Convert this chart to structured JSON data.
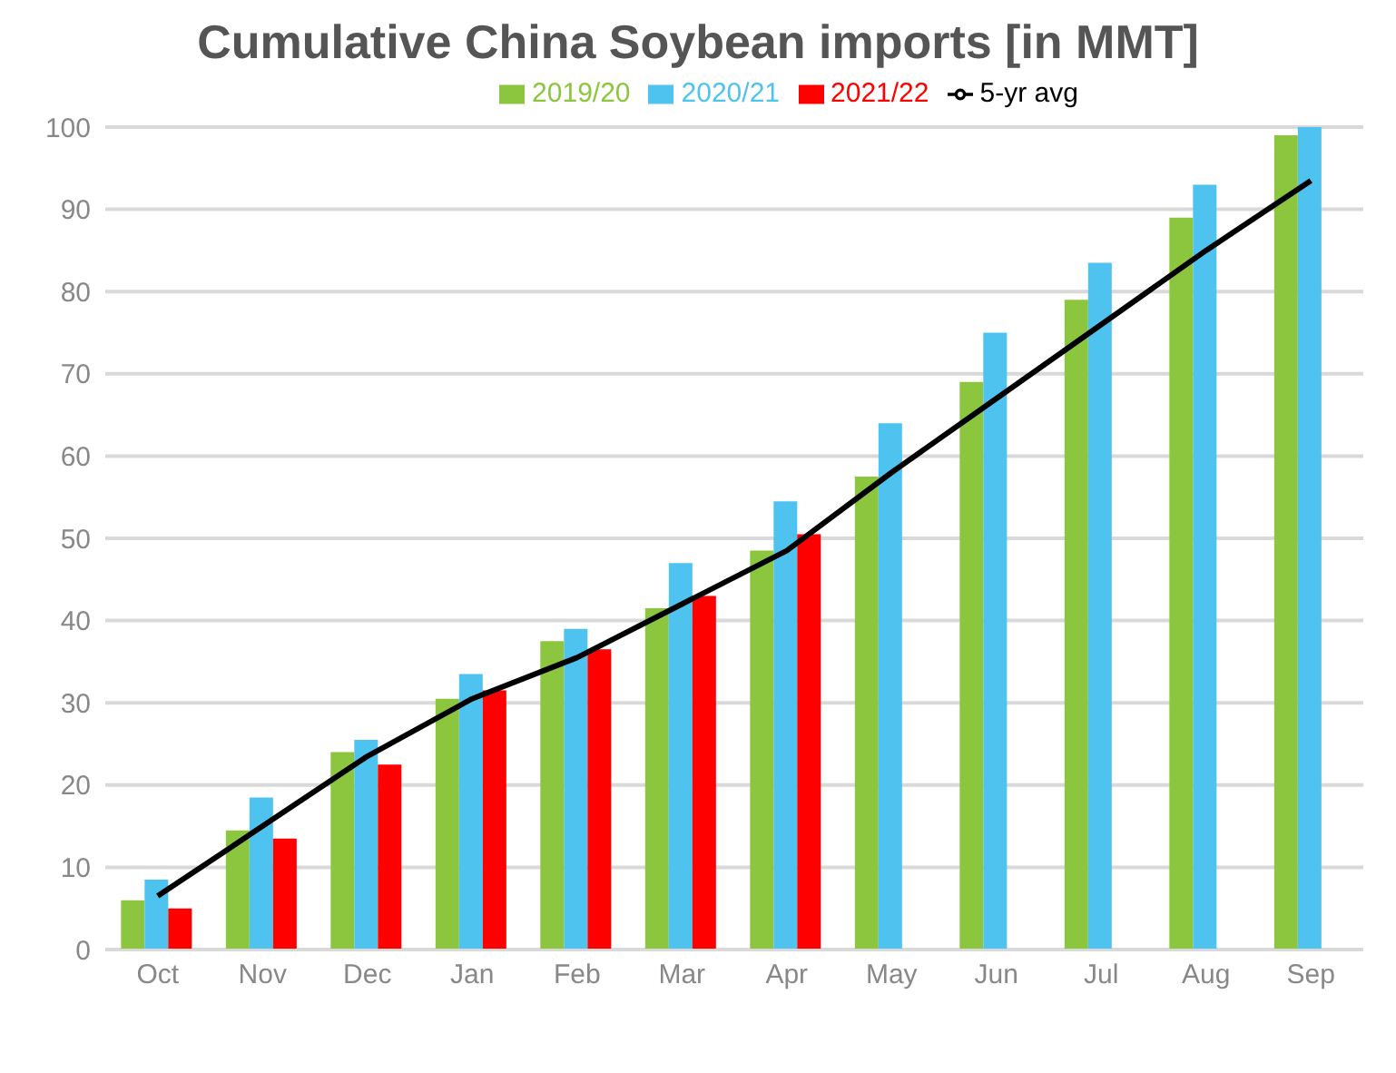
{
  "chart_data": {
    "type": "bar",
    "title": "Cumulative China Soybean imports [in MMT]",
    "categories": [
      "Oct",
      "Nov",
      "Dec",
      "Jan",
      "Feb",
      "Mar",
      "Apr",
      "May",
      "Jun",
      "Jul",
      "Aug",
      "Sep"
    ],
    "series": [
      {
        "name": "2019/20",
        "color": "#8cc63f",
        "values": [
          6,
          14.5,
          24,
          30.5,
          37.5,
          41.5,
          48.5,
          57.5,
          69,
          79,
          89,
          99
        ]
      },
      {
        "name": "2020/21",
        "color": "#4fc3f0",
        "values": [
          8.5,
          18.5,
          25.5,
          33.5,
          39,
          47,
          54.5,
          64,
          75,
          83.5,
          93,
          100
        ]
      },
      {
        "name": "2021/22",
        "color": "#ff0000",
        "values": [
          5,
          13.5,
          22.5,
          31.5,
          36.5,
          43,
          50.5,
          null,
          null,
          null,
          null,
          null
        ]
      },
      {
        "name": "5-yr avg",
        "type": "line",
        "color": "#000000",
        "values": [
          6.5,
          15,
          23.5,
          30.5,
          35.5,
          42,
          48.5,
          58,
          67,
          76,
          85,
          93.5
        ]
      }
    ],
    "ylim": [
      0,
      100
    ],
    "yticks": [
      0,
      10,
      20,
      30,
      40,
      50,
      60,
      70,
      80,
      90,
      100
    ],
    "grid": "y",
    "legend": "top"
  }
}
